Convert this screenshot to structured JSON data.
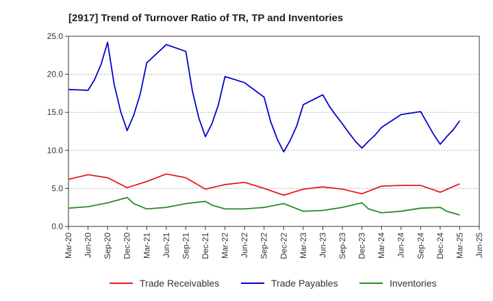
{
  "chart_data": {
    "type": "line",
    "title": "[2917]  Trend of Turnover Ratio of TR, TP and Inventories",
    "xlabel": "",
    "ylabel": "",
    "ylim": [
      0,
      25
    ],
    "y_ticks": [
      "0.0",
      "5.0",
      "10.0",
      "15.0",
      "20.0",
      "25.0"
    ],
    "x_ticks": [
      "Mar-20",
      "Jun-20",
      "Sep-20",
      "Dec-20",
      "Mar-21",
      "Jun-21",
      "Sep-21",
      "Dec-21",
      "Mar-22",
      "Jun-22",
      "Sep-22",
      "Dec-22",
      "Mar-23",
      "Jun-23",
      "Sep-23",
      "Dec-23",
      "Mar-24",
      "Jun-24",
      "Sep-24",
      "Dec-24",
      "Mar-25",
      "Jun-25"
    ],
    "grid": "horizontal-dotted",
    "legend_position": "bottom",
    "x": [
      "Mar-20",
      "Jun-20",
      "Jul-20",
      "Aug-20",
      "Sep-20",
      "Oct-20",
      "Nov-20",
      "Dec-20",
      "Jan-21",
      "Feb-21",
      "Mar-21",
      "Jun-21",
      "Sep-21",
      "Oct-21",
      "Nov-21",
      "Dec-21",
      "Jan-22",
      "Feb-22",
      "Mar-22",
      "Jun-22",
      "Sep-22",
      "Oct-22",
      "Nov-22",
      "Dec-22",
      "Jan-23",
      "Feb-23",
      "Mar-23",
      "Jun-23",
      "Jul-23",
      "Aug-23",
      "Sep-23",
      "Oct-23",
      "Nov-23",
      "Dec-23",
      "Jan-24",
      "Feb-24",
      "Mar-24",
      "Jun-24",
      "Sep-24",
      "Oct-24",
      "Nov-24",
      "Dec-24",
      "Jan-25",
      "Feb-25",
      "Mar-25"
    ],
    "series": [
      {
        "name": "Trade Receivables",
        "color": "#e31a1c",
        "values": [
          6.2,
          6.8,
          null,
          null,
          6.4,
          null,
          null,
          5.1,
          null,
          null,
          5.9,
          6.9,
          6.4,
          null,
          null,
          4.9,
          null,
          null,
          5.5,
          5.8,
          5.0,
          null,
          null,
          4.1,
          null,
          null,
          4.9,
          5.2,
          null,
          null,
          4.9,
          null,
          null,
          4.3,
          null,
          null,
          5.3,
          5.4,
          5.4,
          null,
          null,
          4.5,
          null,
          null,
          5.6
        ]
      },
      {
        "name": "Trade Payables",
        "color": "#0000cc",
        "values": [
          18.0,
          17.9,
          19.3,
          21.3,
          24.2,
          18.7,
          15.1,
          12.6,
          14.6,
          17.4,
          21.5,
          23.9,
          23.0,
          17.8,
          14.2,
          11.8,
          13.5,
          16.0,
          19.7,
          18.9,
          17.0,
          13.8,
          11.5,
          9.8,
          11.3,
          13.2,
          16.0,
          17.3,
          15.8,
          14.6,
          13.5,
          12.3,
          11.2,
          10.3,
          11.2,
          12.0,
          13.0,
          14.7,
          15.1,
          13.6,
          12.1,
          10.8,
          11.8,
          12.7,
          13.9
        ]
      },
      {
        "name": "Inventories",
        "color": "#228b22",
        "values": [
          2.4,
          2.6,
          null,
          null,
          3.1,
          null,
          null,
          3.8,
          3.0,
          null,
          2.3,
          2.5,
          3.0,
          null,
          null,
          3.3,
          2.8,
          null,
          2.3,
          2.3,
          2.5,
          null,
          null,
          3.0,
          null,
          null,
          2.0,
          2.1,
          null,
          null,
          2.5,
          null,
          null,
          3.1,
          2.3,
          null,
          1.8,
          2.0,
          2.4,
          null,
          null,
          2.5,
          2.0,
          null,
          1.5
        ]
      }
    ]
  }
}
